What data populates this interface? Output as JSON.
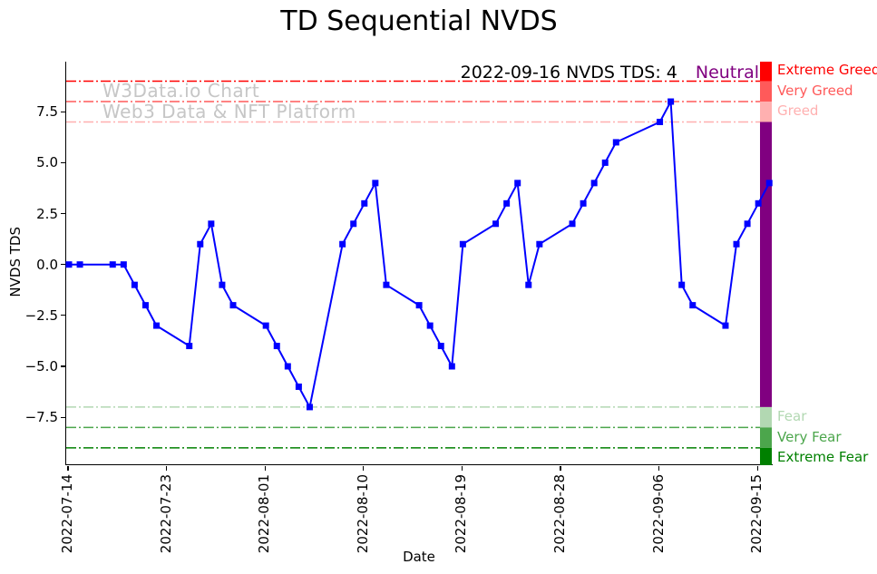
{
  "title": "TD Sequential NVDS",
  "annotation": {
    "text": "2022-09-16 NVDS TDS: 4",
    "status": "Neutral",
    "status_color": "#800080"
  },
  "watermark": {
    "line1": "W3Data.io Chart",
    "line2": "Web3 Data & NFT Platform",
    "color": "#c6c6c6"
  },
  "colors": {
    "series_line": "#0000ff",
    "neutral_zone": "#800080",
    "extreme_greed": "#ff0000",
    "very_greed": "#ff5a5a",
    "greed": "#ffb0b0",
    "fear": "#b2d8b2",
    "very_fear": "#4ca64c",
    "extreme_fear": "#008000"
  },
  "chart_data": {
    "type": "line",
    "title": "TD Sequential NVDS",
    "xlabel": "Date",
    "ylabel": "NVDS TDS",
    "ylim": [
      -10,
      10
    ],
    "xlim": [
      "2022-07-14",
      "2022-09-16"
    ],
    "grid": false,
    "x": [
      "2022-07-14",
      "2022-07-15",
      "2022-07-18",
      "2022-07-19",
      "2022-07-20",
      "2022-07-21",
      "2022-07-22",
      "2022-07-25",
      "2022-07-26",
      "2022-07-27",
      "2022-07-28",
      "2022-07-29",
      "2022-08-01",
      "2022-08-02",
      "2022-08-03",
      "2022-08-04",
      "2022-08-05",
      "2022-08-08",
      "2022-08-09",
      "2022-08-10",
      "2022-08-11",
      "2022-08-12",
      "2022-08-15",
      "2022-08-16",
      "2022-08-17",
      "2022-08-18",
      "2022-08-19",
      "2022-08-22",
      "2022-08-23",
      "2022-08-24",
      "2022-08-25",
      "2022-08-26",
      "2022-08-29",
      "2022-08-30",
      "2022-08-31",
      "2022-09-01",
      "2022-09-02",
      "2022-09-06",
      "2022-09-07",
      "2022-09-08",
      "2022-09-09",
      "2022-09-12",
      "2022-09-13",
      "2022-09-14",
      "2022-09-15",
      "2022-09-16"
    ],
    "series": [
      {
        "name": "NVDS TDS",
        "color": "#0000ff",
        "marker": "square",
        "values": [
          0,
          0,
          0,
          0,
          -1,
          -2,
          -3,
          -4,
          1,
          2,
          -1,
          -2,
          -3,
          -4,
          -5,
          -6,
          -7,
          1,
          2,
          3,
          4,
          -1,
          -2,
          -3,
          -4,
          -5,
          1,
          2,
          3,
          4,
          -1,
          1,
          2,
          3,
          4,
          5,
          6,
          7,
          8,
          -1,
          -2,
          -3,
          1,
          2,
          3,
          4
        ]
      }
    ],
    "x_ticks": [
      "2022-07-14",
      "2022-07-23",
      "2022-08-01",
      "2022-08-10",
      "2022-08-19",
      "2022-08-28",
      "2022-09-06",
      "2022-09-15"
    ],
    "y_ticks": [
      {
        "value": 7.5,
        "label": "7.5"
      },
      {
        "value": 5.0,
        "label": "5.0"
      },
      {
        "value": 2.5,
        "label": "2.5"
      },
      {
        "value": 0.0,
        "label": "0.0"
      },
      {
        "value": -2.5,
        "label": "−2.5"
      },
      {
        "value": -5.0,
        "label": "−5.0"
      },
      {
        "value": -7.5,
        "label": "−7.5"
      }
    ],
    "thresholds": [
      {
        "label": "Extreme Greed",
        "value": 9,
        "label_at": 9.5,
        "color": "#ff0000",
        "style": "dashdot"
      },
      {
        "label": "Very Greed",
        "value": 8,
        "label_at": 8.5,
        "color": "#ff5a5a",
        "style": "dashdot"
      },
      {
        "label": "Greed",
        "value": 7,
        "label_at": 7.5,
        "color": "#ffb0b0",
        "style": "dashdot"
      },
      {
        "label": "Fear",
        "value": -7,
        "label_at": -7.5,
        "color": "#b2d8b2",
        "style": "dashdot"
      },
      {
        "label": "Very Fear",
        "value": -8,
        "label_at": -8.5,
        "color": "#4ca64c",
        "style": "dashdot"
      },
      {
        "label": "Extreme Fear",
        "value": -9,
        "label_at": -9.5,
        "color": "#008000",
        "style": "dashdot"
      }
    ],
    "gauge": [
      {
        "from": 10,
        "to": 9,
        "color": "#ff0000",
        "label": "Extreme Greed"
      },
      {
        "from": 9,
        "to": 8,
        "color": "#ff5a5a",
        "label": "Very Greed"
      },
      {
        "from": 8,
        "to": 7,
        "color": "#ffb0b0",
        "label": "Greed"
      },
      {
        "from": 7,
        "to": -7,
        "color": "#800080",
        "label": "Neutral"
      },
      {
        "from": -7,
        "to": -8,
        "color": "#b2d8b2",
        "label": "Fear"
      },
      {
        "from": -8,
        "to": -9,
        "color": "#4ca64c",
        "label": "Very Fear"
      },
      {
        "from": -9,
        "to": -10,
        "color": "#008000",
        "label": "Extreme Fear"
      }
    ],
    "legend": "none"
  }
}
